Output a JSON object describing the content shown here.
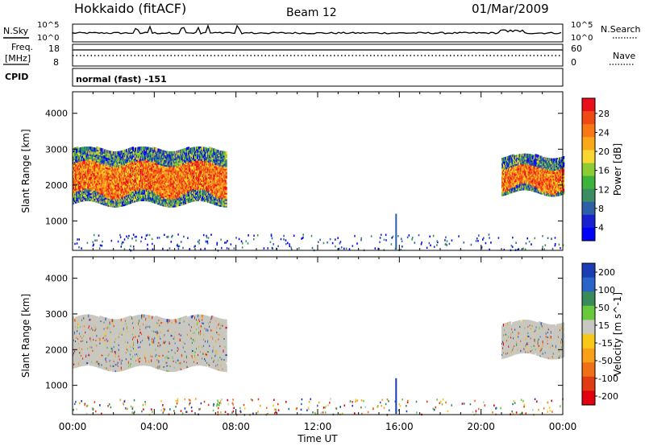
{
  "header": {
    "title": "Hokkaido (fitACF)",
    "beam": "Beam 12",
    "date": "01/Mar/2009"
  },
  "side_labels": {
    "nsky": "N.Sky",
    "nsearch": "N.Search",
    "freq_line1": "Freq.",
    "freq_line2": "[MHz]",
    "nave": "Nave",
    "cpid": "CPID"
  },
  "noise_panel": {
    "left_ticks": [
      "10^5",
      "10^0"
    ],
    "right_ticks": [
      "10^5",
      "10^0"
    ]
  },
  "freq_panel": {
    "left_ticks": [
      "18",
      "8"
    ],
    "right_ticks": [
      "60",
      "0"
    ]
  },
  "cpid_text": "normal (fast) -151",
  "chart_data": [
    {
      "type": "heatmap",
      "name": "power",
      "ylabel": "Slant Range [km]",
      "xlabel": "",
      "xlim_hours": [
        0,
        24
      ],
      "ylim_km": [
        180,
        4600
      ],
      "yticks": [
        1000,
        2000,
        3000,
        4000
      ],
      "colorbar": {
        "label": "Power [dB]",
        "ticks": [
          "28",
          "24",
          "20",
          "16",
          "12",
          "8",
          "4"
        ],
        "colors": [
          "#e8101a",
          "#f04a14",
          "#f87818",
          "#f8a818",
          "#f8d830",
          "#8ccc32",
          "#3cb43c",
          "#3c8c64",
          "#2c5fa8",
          "#1820d0",
          "#0000ff"
        ]
      },
      "regions": [
        {
          "t_start": 0.0,
          "t_end": 7.5,
          "range_low": 1500,
          "range_high": 3000,
          "core_low": 1750,
          "core_high": 2600
        },
        {
          "t_start": 21.0,
          "t_end": 24.0,
          "range_low": 1800,
          "range_high": 2800,
          "core_low": 1900,
          "core_high": 2500
        }
      ]
    },
    {
      "type": "heatmap",
      "name": "velocity",
      "ylabel": "Slant Range [km]",
      "xlabel": "Time UT",
      "xlim_hours": [
        0,
        24
      ],
      "ylim_km": [
        180,
        4600
      ],
      "yticks": [
        1000,
        2000,
        3000,
        4000
      ],
      "xticks": [
        "00:00",
        "04:00",
        "08:00",
        "12:00",
        "16:00",
        "20:00",
        "00:00"
      ],
      "colorbar": {
        "label": "Velocity [m s^-1]",
        "ticks": [
          "200",
          "100",
          "50",
          "15",
          "-15",
          "-50",
          "-100",
          "-200"
        ],
        "colors": [
          "#1a3cb4",
          "#2a64c8",
          "#3a8a5a",
          "#6ac83c",
          "#c8c8c0",
          "#f8c818",
          "#f8a018",
          "#f07018",
          "#e03c14",
          "#e00010"
        ]
      },
      "regions": [
        {
          "t_start": 0.0,
          "t_end": 7.5,
          "range_low": 1500,
          "range_high": 2900
        },
        {
          "t_start": 21.0,
          "t_end": 24.0,
          "range_low": 1850,
          "range_high": 2750
        }
      ]
    }
  ]
}
